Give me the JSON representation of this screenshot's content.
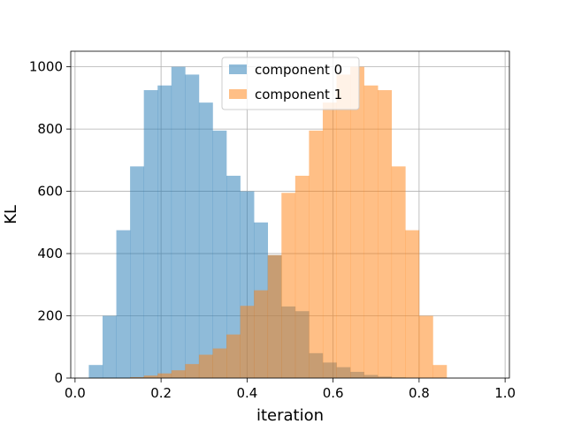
{
  "chart_data": {
    "type": "bar",
    "title": "",
    "xlabel": "iteration",
    "ylabel": "KL",
    "xlim": [
      -0.01,
      1.01
    ],
    "ylim": [
      0,
      1050
    ],
    "xticks": [
      0.0,
      0.2,
      0.4,
      0.6,
      0.8,
      1.0
    ],
    "xtick_labels": [
      "0.0",
      "0.2",
      "0.4",
      "0.6",
      "0.8",
      "1.0"
    ],
    "yticks": [
      0,
      200,
      400,
      600,
      800,
      1000
    ],
    "ytick_labels": [
      "0",
      "200",
      "400",
      "600",
      "800",
      "1000"
    ],
    "grid": true,
    "legend_position": "top-center",
    "bin_edges": [
      0.032,
      0.064,
      0.096,
      0.128,
      0.16,
      0.192,
      0.224,
      0.256,
      0.288,
      0.32,
      0.352,
      0.384,
      0.416,
      0.448,
      0.48,
      0.512,
      0.544,
      0.576,
      0.608,
      0.64,
      0.672,
      0.704,
      0.736,
      0.768,
      0.8,
      0.832,
      0.864,
      0.896,
      0.928,
      0.96
    ],
    "series": [
      {
        "name": "component 0",
        "color": "#1f77b4",
        "opacity": 0.5,
        "bin_start": 0,
        "values": [
          42,
          200,
          475,
          680,
          925,
          940,
          1000,
          975,
          885,
          795,
          650,
          600,
          500,
          395,
          230,
          215,
          80,
          50,
          35,
          20,
          10,
          5,
          2
        ]
      },
      {
        "name": "component 1",
        "color": "#ff7f0e",
        "opacity": 0.5,
        "bin_start": 3,
        "values": [
          3,
          8,
          15,
          25,
          45,
          75,
          95,
          140,
          232,
          282,
          395,
          595,
          650,
          795,
          885,
          975,
          1000,
          940,
          925,
          680,
          475,
          200,
          42
        ],
        "bin_offset_note": ""
      }
    ]
  }
}
